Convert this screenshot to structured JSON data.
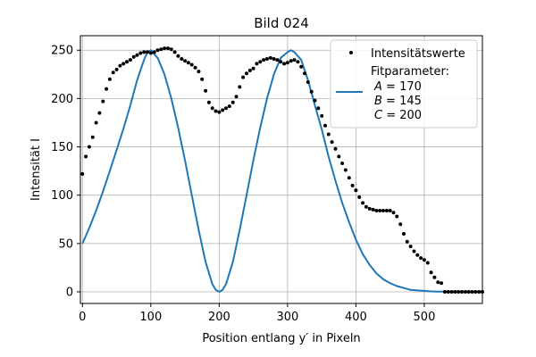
{
  "chart_data": {
    "type": "line",
    "title": "Bild 024",
    "xlabel": "Position entlang y′ in Pixeln",
    "ylabel": "Intensität I",
    "xlim": [
      -3,
      585
    ],
    "ylim": [
      -12,
      265
    ],
    "xticks": [
      0,
      100,
      200,
      300,
      400,
      500
    ],
    "yticks": [
      0,
      50,
      100,
      150,
      200,
      250
    ],
    "grid": true,
    "legend_position": "top-right",
    "colors": {
      "points": "#000000",
      "fit": "#1f77b4",
      "grid": "#b0b0b0"
    },
    "series": [
      {
        "name": "Intensitätswerte",
        "kind": "scatter",
        "x": [
          0,
          5,
          10,
          15,
          20,
          25,
          30,
          35,
          40,
          45,
          50,
          55,
          60,
          65,
          70,
          75,
          80,
          85,
          90,
          95,
          100,
          105,
          110,
          115,
          120,
          125,
          130,
          135,
          140,
          145,
          150,
          155,
          160,
          165,
          170,
          175,
          180,
          185,
          190,
          195,
          200,
          205,
          210,
          215,
          220,
          225,
          230,
          235,
          240,
          245,
          250,
          255,
          260,
          265,
          270,
          275,
          280,
          285,
          290,
          295,
          300,
          305,
          310,
          315,
          320,
          325,
          330,
          335,
          340,
          345,
          350,
          355,
          360,
          365,
          370,
          375,
          380,
          385,
          390,
          395,
          400,
          405,
          410,
          415,
          420,
          425,
          430,
          435,
          440,
          445,
          450,
          455,
          460,
          465,
          470,
          475,
          480,
          485,
          490,
          495,
          500,
          505,
          510,
          515,
          520,
          525,
          530,
          535,
          540,
          545,
          550,
          555,
          560,
          565,
          570,
          575,
          580,
          585
        ],
        "y": [
          122,
          140,
          150,
          160,
          175,
          185,
          197,
          210,
          220,
          227,
          230,
          234,
          236,
          238,
          240,
          243,
          245,
          247,
          248,
          248,
          247,
          248,
          250,
          251,
          252,
          252,
          251,
          248,
          244,
          241,
          239,
          237,
          235,
          232,
          228,
          220,
          208,
          196,
          190,
          187,
          186,
          188,
          190,
          192,
          196,
          202,
          212,
          222,
          226,
          229,
          231,
          236,
          238,
          240,
          241,
          242,
          241,
          240,
          238,
          236,
          237,
          239,
          240,
          238,
          233,
          226,
          217,
          207,
          198,
          190,
          182,
          172,
          163,
          155,
          148,
          140,
          133,
          126,
          118,
          110,
          105,
          98,
          92,
          88,
          86,
          85,
          84,
          84,
          84,
          84,
          84,
          82,
          78,
          70,
          60,
          52,
          47,
          42,
          38,
          35,
          33,
          30,
          20,
          15,
          10,
          9,
          0,
          0,
          0,
          0,
          0,
          0,
          0,
          0,
          0,
          0,
          0,
          0
        ]
      },
      {
        "name": "Fitparameter:",
        "kind": "line",
        "params": [
          {
            "label": "A",
            "value": "170"
          },
          {
            "label": "B",
            "value": "145"
          },
          {
            "label": "C",
            "value": "200"
          }
        ],
        "x": [
          0,
          10,
          20,
          30,
          40,
          50,
          60,
          70,
          80,
          90,
          95,
          100,
          110,
          120,
          130,
          140,
          150,
          160,
          170,
          180,
          190,
          195,
          200,
          205,
          210,
          220,
          230,
          240,
          250,
          260,
          270,
          280,
          290,
          300,
          305,
          310,
          320,
          330,
          340,
          350,
          360,
          370,
          380,
          390,
          400,
          410,
          420,
          430,
          440,
          450,
          460,
          470,
          480,
          490,
          500,
          510,
          520,
          530,
          540,
          550,
          560,
          570,
          580,
          585
        ],
        "y": [
          50,
          66,
          84,
          104,
          125,
          147,
          169,
          193,
          219,
          240,
          248,
          250,
          242,
          225,
          200,
          170,
          136,
          100,
          64,
          31,
          8,
          2,
          0,
          2,
          8,
          31,
          64,
          100,
          136,
          170,
          200,
          225,
          242,
          248,
          250,
          248,
          240,
          219,
          193,
          168,
          140,
          115,
          92,
          72,
          54,
          39,
          28,
          19,
          13,
          9,
          6,
          4,
          2,
          1.5,
          1,
          0.5,
          0.3,
          0.2,
          0.1,
          0.1,
          0,
          0,
          0,
          0
        ]
      }
    ]
  }
}
